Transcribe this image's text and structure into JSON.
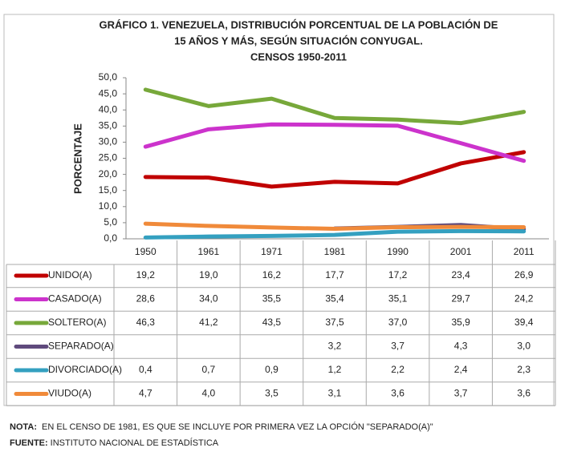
{
  "chart_data": {
    "type": "line",
    "title_lines": [
      "GRÁFICO 1. VENEZUELA, DISTRIBUCIÓN PORCENTUAL DE LA POBLACIÓN DE",
      "15 AÑOS Y MÁS, SEGÚN SITUACIÓN CONYUGAL.",
      "CENSOS 1950-2011"
    ],
    "y_label": "PORCENTAJE",
    "categories": [
      "1950",
      "1961",
      "1971",
      "1981",
      "1990",
      "2001",
      "2011"
    ],
    "ylim": [
      0,
      50
    ],
    "yticks": [
      {
        "value": 0,
        "label": "0,0"
      },
      {
        "value": 5,
        "label": "5,0"
      },
      {
        "value": 10,
        "label": "10,0"
      },
      {
        "value": 15,
        "label": "15,0"
      },
      {
        "value": 20,
        "label": "20,0"
      },
      {
        "value": 25,
        "label": "25,0"
      },
      {
        "value": 30,
        "label": "30,0"
      },
      {
        "value": 35,
        "label": "35,0"
      },
      {
        "value": 40,
        "label": "40,0"
      },
      {
        "value": 45,
        "label": "45,0"
      },
      {
        "value": 50,
        "label": "50,0"
      }
    ],
    "grid": false,
    "series": [
      {
        "name": "UNIDO(A)",
        "color": "#c00000",
        "values": [
          19.2,
          19.0,
          16.2,
          17.7,
          17.2,
          23.4,
          26.9
        ],
        "value_labels": [
          "19,2",
          "19,0",
          "16,2",
          "17,7",
          "17,2",
          "23,4",
          "26,9"
        ]
      },
      {
        "name": "CASADO(A)",
        "color": "#cc33cc",
        "values": [
          28.6,
          34.0,
          35.5,
          35.4,
          35.1,
          29.7,
          24.2
        ],
        "value_labels": [
          "28,6",
          "34,0",
          "35,5",
          "35,4",
          "35,1",
          "29,7",
          "24,2"
        ]
      },
      {
        "name": "SOLTERO(A)",
        "color": "#77a83a",
        "values": [
          46.3,
          41.2,
          43.5,
          37.5,
          37.0,
          35.9,
          39.4
        ],
        "value_labels": [
          "46,3",
          "41,2",
          "43,5",
          "37,5",
          "37,0",
          "35,9",
          "39,4"
        ]
      },
      {
        "name": "SEPARADO(A)",
        "color": "#5f4a7d",
        "values": [
          null,
          null,
          null,
          3.2,
          3.7,
          4.3,
          3.0
        ],
        "value_labels": [
          null,
          null,
          null,
          "3,2",
          "3,7",
          "4,3",
          "3,0"
        ]
      },
      {
        "name": "DIVORCIADO(A)",
        "color": "#34a0c0",
        "values": [
          0.4,
          0.7,
          0.9,
          1.2,
          2.2,
          2.4,
          2.3
        ],
        "value_labels": [
          "0,4",
          "0,7",
          "0,9",
          "1,2",
          "2,2",
          "2,4",
          "2,3"
        ]
      },
      {
        "name": "VIUDO(A)",
        "color": "#f08a3a",
        "values": [
          4.7,
          4.0,
          3.5,
          3.1,
          3.6,
          3.7,
          3.6
        ],
        "value_labels": [
          "4,7",
          "4,0",
          "3,5",
          "3,1",
          "3,6",
          "3,7",
          "3,6"
        ]
      }
    ]
  },
  "note": {
    "label": "NOTA:",
    "text": "EN EL CENSO DE 1981, ES QUE SE INCLUYE POR PRIMERA VEZ LA OPCIÓN \"SEPARADO(A)\""
  },
  "source": {
    "label": "FUENTE:",
    "text": "INSTITUTO NACIONAL DE ESTADÍSTICA"
  }
}
